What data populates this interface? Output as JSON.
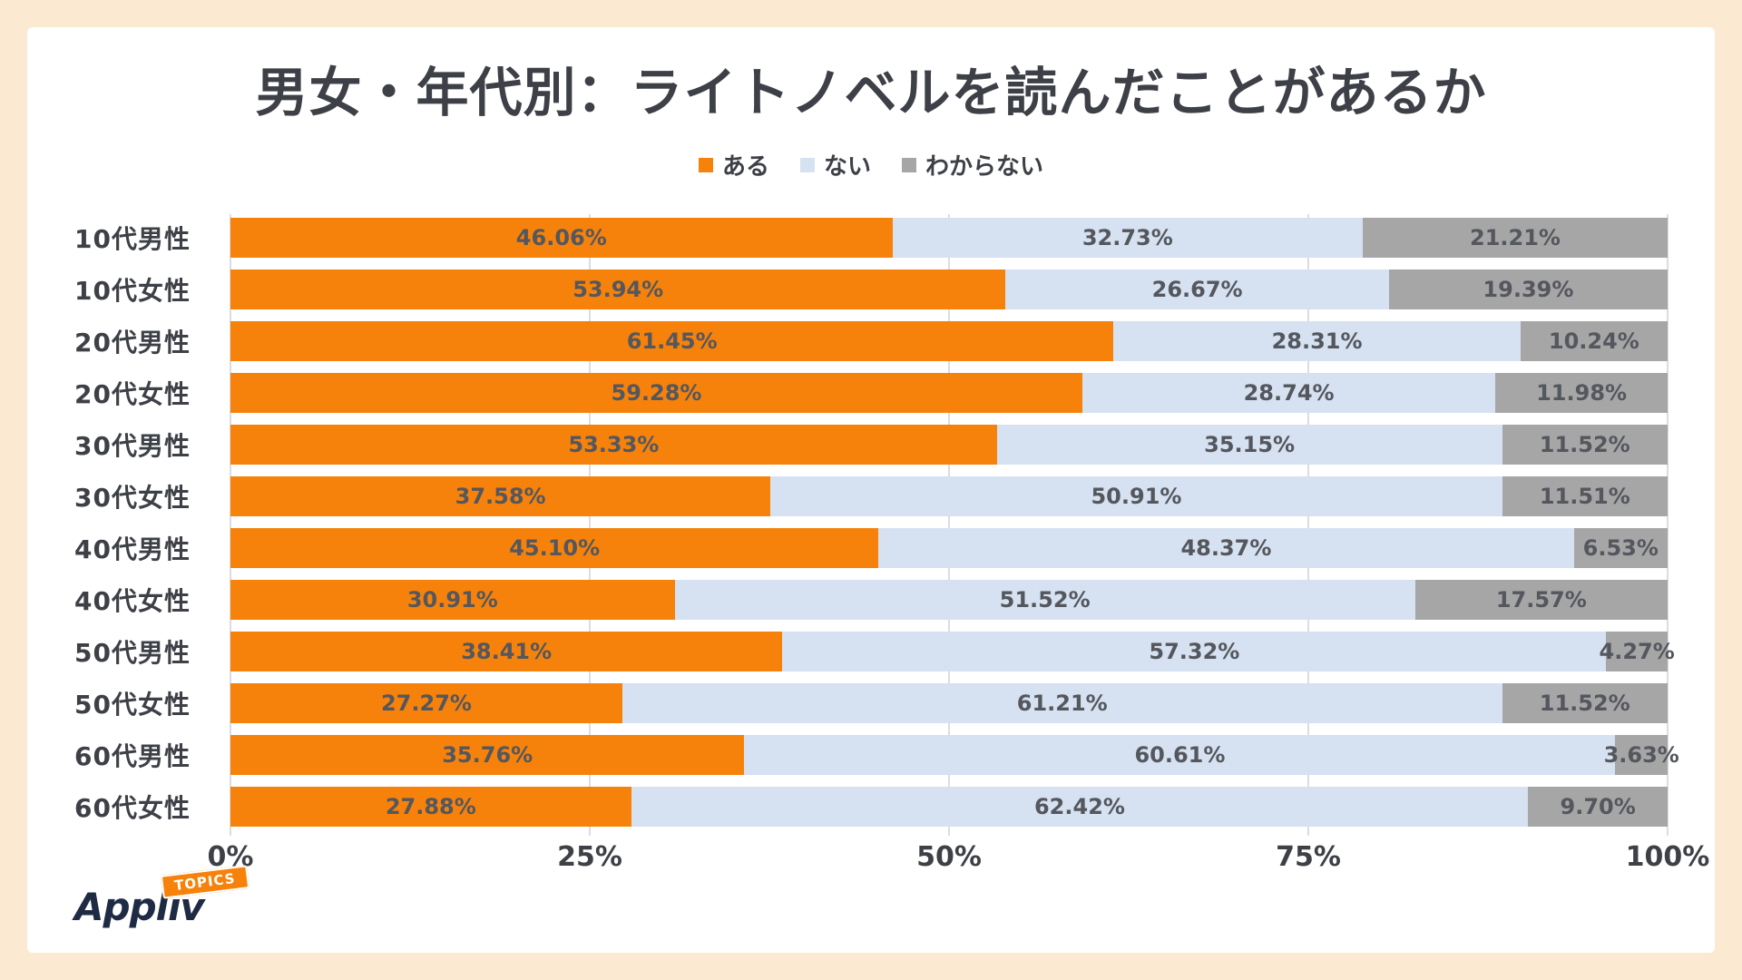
{
  "page": {
    "title": "男女・年代別：ライトノベルを読んだことがあるか"
  },
  "legend": [
    {
      "label": "ある",
      "color": "#F6820C"
    },
    {
      "label": "ない",
      "color": "#D6E1F1"
    },
    {
      "label": "わからない",
      "color": "#A6A6A6"
    }
  ],
  "chart_data": {
    "type": "bar",
    "orientation": "horizontal",
    "stacked": true,
    "title": "男女・年代別：ライトノベルを読んだことがあるか",
    "categories": [
      "10代男性",
      "10代女性",
      "20代男性",
      "20代女性",
      "30代男性",
      "30代女性",
      "40代男性",
      "40代女性",
      "50代男性",
      "50代女性",
      "60代男性",
      "60代女性"
    ],
    "series": [
      {
        "name": "ある",
        "color": "#F6820C",
        "values": [
          46.06,
          53.94,
          61.45,
          59.28,
          53.33,
          37.58,
          45.1,
          30.91,
          38.41,
          27.27,
          35.76,
          27.88
        ]
      },
      {
        "name": "ない",
        "color": "#D6E1F1",
        "values": [
          32.73,
          26.67,
          28.31,
          28.74,
          35.15,
          50.91,
          48.37,
          51.52,
          57.32,
          61.21,
          60.61,
          62.42
        ]
      },
      {
        "name": "わからない",
        "color": "#A6A6A6",
        "values": [
          21.21,
          19.39,
          10.24,
          11.98,
          11.52,
          11.51,
          6.53,
          17.57,
          4.27,
          11.52,
          3.63,
          9.7
        ]
      }
    ],
    "x_ticks": [
      "0%",
      "25%",
      "50%",
      "75%",
      "100%"
    ],
    "xlim": [
      0,
      100
    ],
    "value_suffix": "%",
    "grid": true,
    "legend_position": "top"
  },
  "logo": {
    "brand": "Appliv",
    "badge": "TOPICS"
  }
}
